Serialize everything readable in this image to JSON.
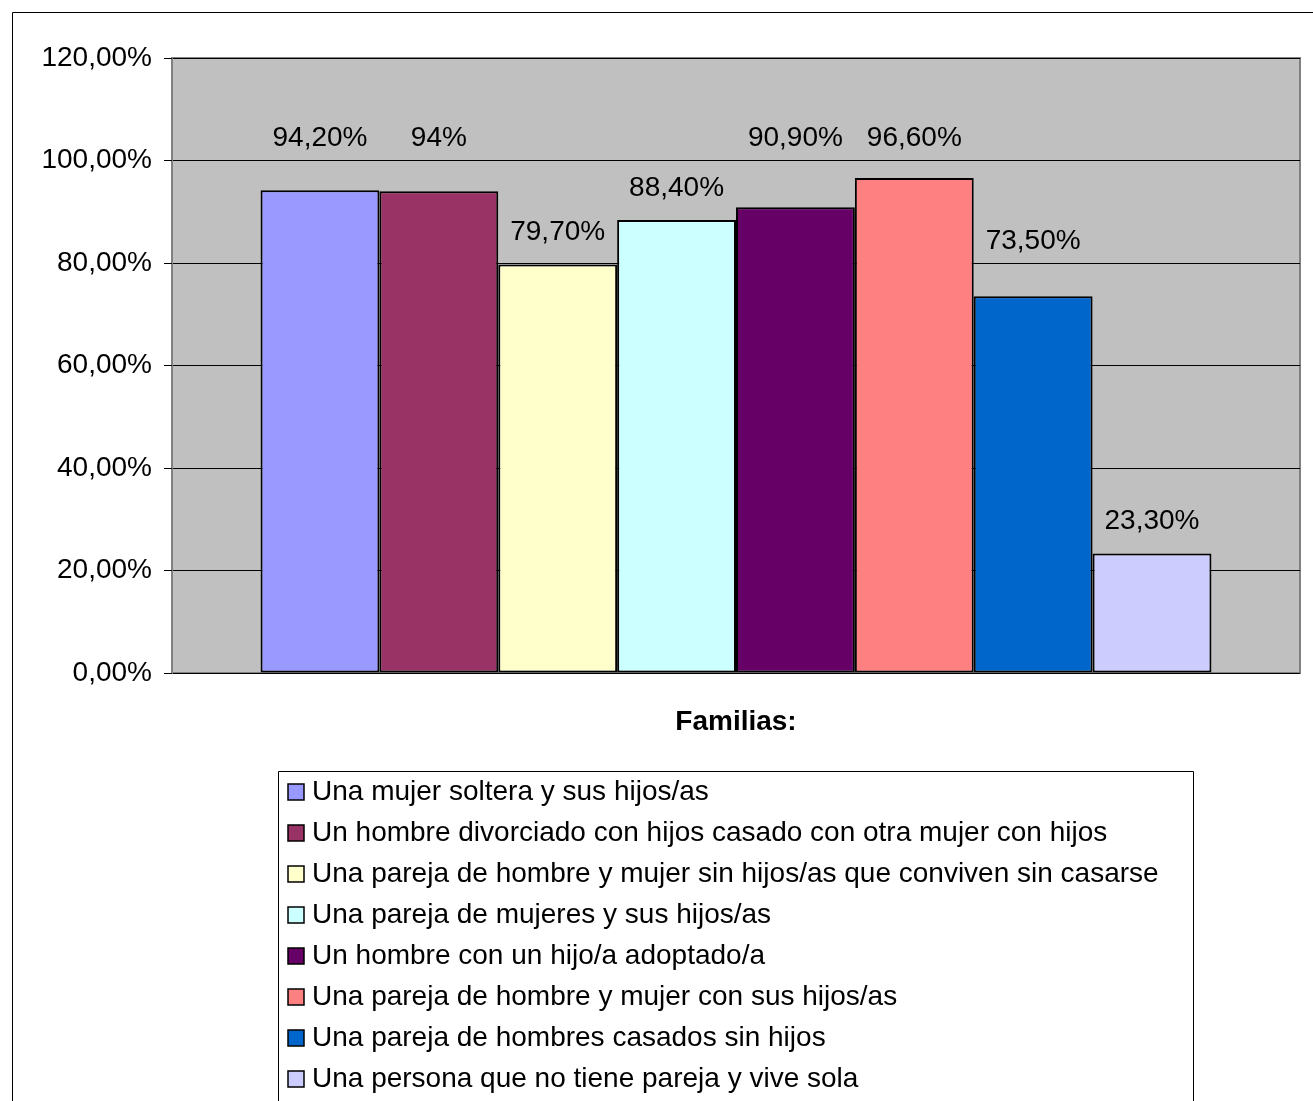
{
  "chart_data": {
    "type": "bar",
    "xlabel": "Familias:",
    "categories": [
      null
    ],
    "series": [
      {
        "name": "Una mujer soltera y sus hijos/as",
        "color": "#9999ff",
        "values": [
          94.2
        ],
        "value_labels": [
          "94,20%"
        ]
      },
      {
        "name": "Un hombre divorciado con hijos casado con otra mujer con hijos",
        "color": "#993366",
        "values": [
          94
        ],
        "value_labels": [
          "94%"
        ]
      },
      {
        "name": "Una pareja de hombre y mujer sin hijos/as que conviven sin casarse",
        "color": "#ffffcc",
        "values": [
          79.7
        ],
        "value_labels": [
          "79,70%"
        ]
      },
      {
        "name": "Una pareja de mujeres y sus hijos/as",
        "color": "#ccffff",
        "values": [
          88.4
        ],
        "value_labels": [
          "88,40%"
        ]
      },
      {
        "name": "Un hombre con un hijo/a adoptado/a",
        "color": "#660066",
        "values": [
          90.9
        ],
        "value_labels": [
          "90,90%"
        ]
      },
      {
        "name": "Una pareja de hombre y mujer con sus hijos/as",
        "color": "#ff8080",
        "values": [
          96.6
        ],
        "value_labels": [
          "96,60%"
        ]
      },
      {
        "name": "Una pareja de hombres casados sin hijos",
        "color": "#0066cc",
        "values": [
          73.5
        ],
        "value_labels": [
          "73,50%"
        ]
      },
      {
        "name": "Una persona que no tiene pareja y vive sola",
        "color": "#ccccff",
        "values": [
          23.3
        ],
        "value_labels": [
          "23,30%"
        ]
      }
    ],
    "ylim": [
      0,
      120
    ],
    "yticks": [
      {
        "value": 0,
        "label": "0,00%"
      },
      {
        "value": 20,
        "label": "20,00%"
      },
      {
        "value": 40,
        "label": "40,00%"
      },
      {
        "value": 60,
        "label": "60,00%"
      },
      {
        "value": 80,
        "label": "80,00%"
      },
      {
        "value": 100,
        "label": "100,00%"
      },
      {
        "value": 120,
        "label": "120,00%"
      }
    ],
    "grid": "y",
    "legend": "bottom"
  }
}
